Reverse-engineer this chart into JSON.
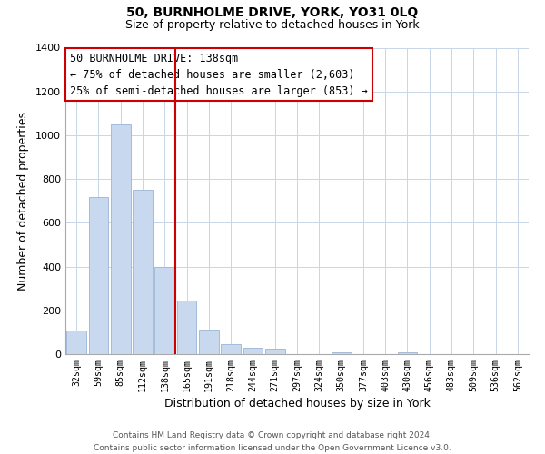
{
  "title_line1": "50, BURNHOLME DRIVE, YORK, YO31 0LQ",
  "title_line2": "Size of property relative to detached houses in York",
  "xlabel": "Distribution of detached houses by size in York",
  "ylabel": "Number of detached properties",
  "bar_labels": [
    "32sqm",
    "59sqm",
    "85sqm",
    "112sqm",
    "138sqm",
    "165sqm",
    "191sqm",
    "218sqm",
    "244sqm",
    "271sqm",
    "297sqm",
    "324sqm",
    "350sqm",
    "377sqm",
    "403sqm",
    "430sqm",
    "456sqm",
    "483sqm",
    "509sqm",
    "536sqm",
    "562sqm"
  ],
  "bar_values": [
    107,
    717,
    1050,
    750,
    400,
    243,
    110,
    47,
    27,
    23,
    0,
    0,
    10,
    0,
    0,
    10,
    0,
    0,
    0,
    0,
    0
  ],
  "bar_color": "#c8d9ef",
  "bar_edge_color": "#9ab5d5",
  "vline_color": "#cc0000",
  "annotation_title": "50 BURNHOLME DRIVE: 138sqm",
  "annotation_line1": "← 75% of detached houses are smaller (2,603)",
  "annotation_line2": "25% of semi-detached houses are larger (853) →",
  "annotation_box_color": "#ffffff",
  "annotation_box_edge": "#cc0000",
  "ylim": [
    0,
    1400
  ],
  "yticks": [
    0,
    200,
    400,
    600,
    800,
    1000,
    1200,
    1400
  ],
  "footer_line1": "Contains HM Land Registry data © Crown copyright and database right 2024.",
  "footer_line2": "Contains public sector information licensed under the Open Government Licence v3.0.",
  "background_color": "#ffffff",
  "grid_color": "#c8d5e8"
}
